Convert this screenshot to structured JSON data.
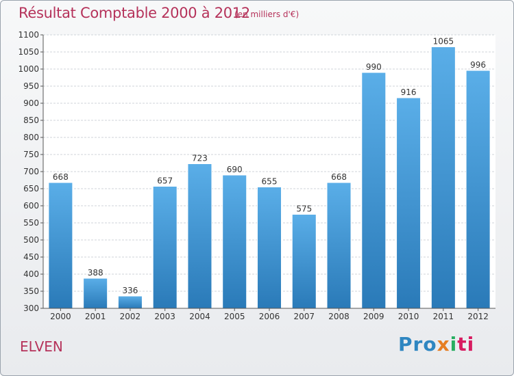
{
  "header": {
    "title": "Résultat Comptable 2000 à 2012",
    "subtitle": "(en milliers d'€)"
  },
  "footer": {
    "place": "ELVEN",
    "logo_parts": [
      "Pro",
      "x",
      "i",
      "ti"
    ]
  },
  "colors": {
    "bar_top": "#5aaee8",
    "bar_bottom": "#2a7ab8",
    "title": "#b5325a"
  },
  "chart_data": {
    "type": "bar",
    "title": "Résultat Comptable 2000 à 2012",
    "xlabel": "",
    "ylabel": "",
    "ylim": [
      300,
      1100
    ],
    "yticks": [
      300,
      350,
      400,
      450,
      500,
      550,
      600,
      650,
      700,
      750,
      800,
      850,
      900,
      950,
      1000,
      1050,
      1100
    ],
    "grid": true,
    "categories": [
      "2000",
      "2001",
      "2002",
      "2003",
      "2004",
      "2005",
      "2006",
      "2007",
      "2008",
      "2009",
      "2010",
      "2011",
      "2012"
    ],
    "values": [
      668,
      388,
      336,
      657,
      723,
      690,
      655,
      575,
      668,
      990,
      916,
      1065,
      996
    ]
  }
}
